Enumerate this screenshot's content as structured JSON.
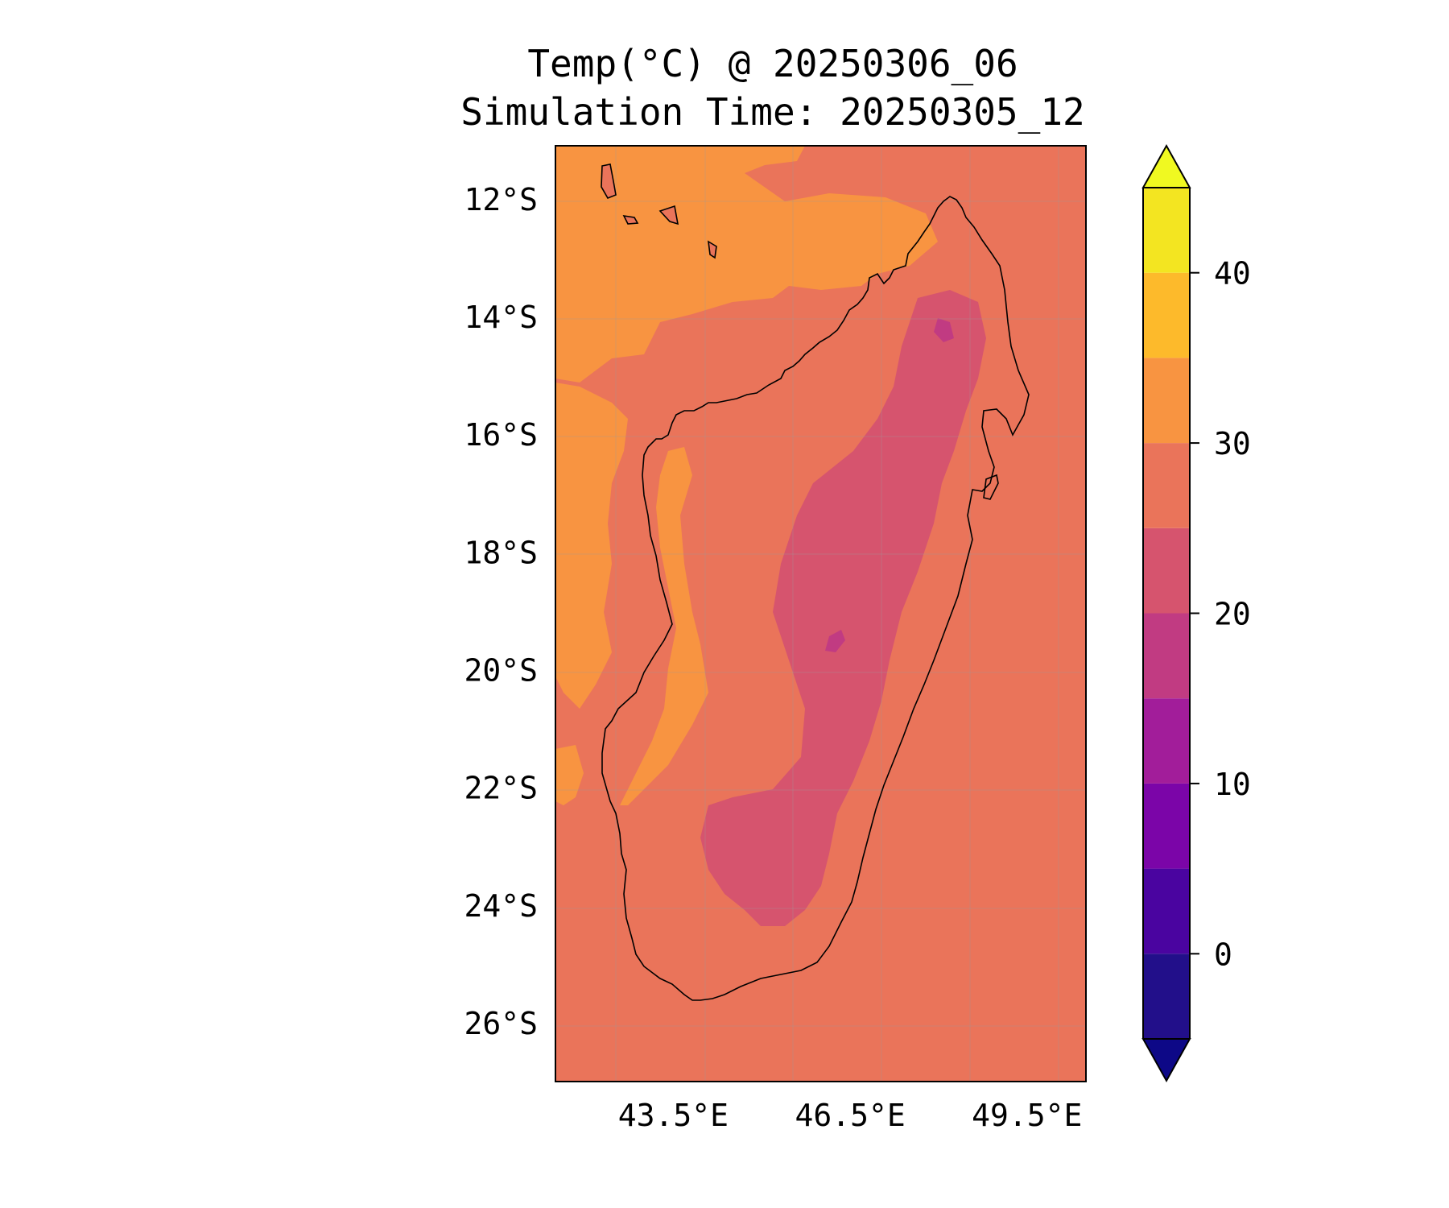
{
  "chart_data": {
    "type": "heatmap",
    "title": "Temp(°C) @ 20250306_06",
    "subtitle": "Simulation Time: 20250305_12",
    "x_ticks": [
      "43.5°E",
      "46.5°E",
      "49.5°E"
    ],
    "x_tick_values": [
      43.5,
      46.5,
      49.5
    ],
    "y_ticks": [
      "12°S",
      "14°S",
      "16°S",
      "18°S",
      "20°S",
      "22°S",
      "24°S",
      "26°S"
    ],
    "y_tick_values": [
      -12,
      -14,
      -16,
      -18,
      -20,
      -22,
      -24,
      -26
    ],
    "xlim": [
      41.5,
      50.5
    ],
    "ylim": [
      -27,
      -11.1
    ],
    "colorbar": {
      "ticks": [
        "0",
        "10",
        "20",
        "30",
        "40"
      ],
      "tick_values": [
        0,
        10,
        20,
        30,
        40
      ],
      "range": [
        -5,
        45
      ],
      "levels": [
        -5,
        0,
        5,
        10,
        15,
        20,
        25,
        30,
        35,
        40,
        45
      ],
      "colors": [
        "#220f8a",
        "#4a04a0",
        "#7b05a8",
        "#a21d9a",
        "#c13b82",
        "#d6546e",
        "#ea745a",
        "#f89441",
        "#fdba2b",
        "#f3e521"
      ],
      "under_color": "#0d0887",
      "over_color": "#f0f921",
      "extend": "both"
    },
    "dominant_fields": {
      "ocean_east": "25-30",
      "mozambique_channel": "30-35",
      "central_highlands": "20-25",
      "highland_cores": "15-20"
    }
  }
}
